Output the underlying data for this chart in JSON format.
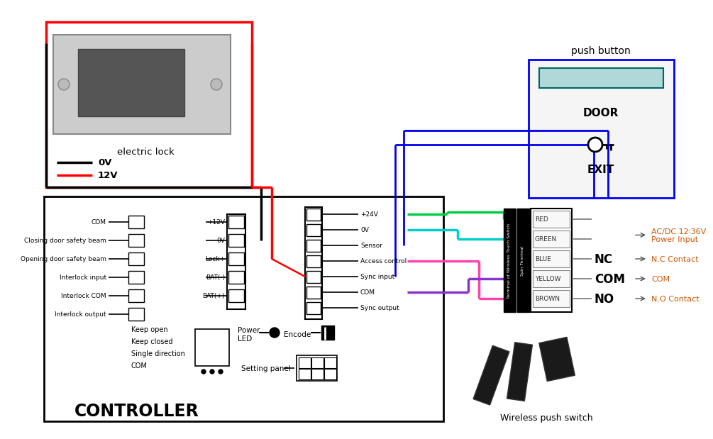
{
  "bg_color": "#ffffff",
  "controller_label": "CONTROLLER",
  "electric_lock_label": "electric lock",
  "push_button_label": "push button",
  "wireless_switch_label": "Wireless push switch",
  "left_terminals": [
    "COM",
    "Closing door safety beam",
    "Opening door safety beam",
    "Interlock input",
    "Interlock COM",
    "Interlock output"
  ],
  "center_left_terminals": [
    "+12V",
    "0V",
    "Lock+",
    "BAT(-)",
    "BAT(+)"
  ],
  "center_right_terminals": [
    "+24V",
    "0V",
    "Sensor",
    "Access control",
    "Sync input",
    "COM",
    "Sync output"
  ],
  "right_terminal_labels": [
    "RED",
    "GREEN",
    "BLUE",
    "YELLOW",
    "BROWN"
  ],
  "power_input_label": "AC/DC 12∶36V\nPower Input",
  "nc_contact_label": "N.C Contact",
  "com_contact_label": "COM",
  "no_contact_label": "N.O Contact",
  "setting_panel_label": "Setting panel",
  "keep_labels": [
    "Keep open",
    "Keep closed",
    "Single direction",
    "COM"
  ],
  "power_led_label": "Power\nLED",
  "encode_label": "Encode",
  "wire_green_color": "#00cc44",
  "wire_cyan_color": "#00cccc",
  "wire_pink_color": "#ff44aa",
  "wire_purple_color": "#8833cc",
  "wire_blue_color": "#0000ee"
}
